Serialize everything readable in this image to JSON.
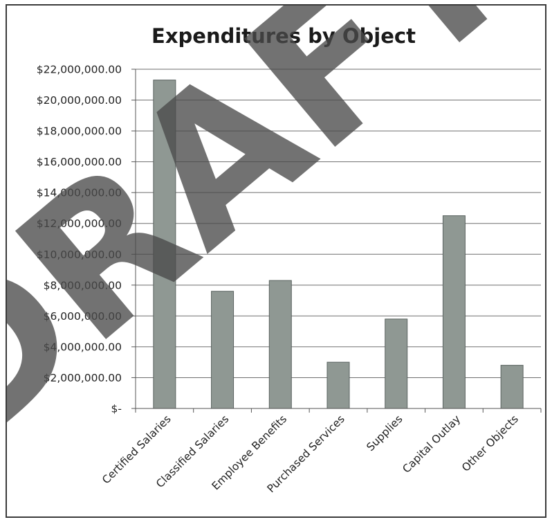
{
  "chart_data": {
    "type": "bar",
    "title": "Expenditures by Object",
    "categories": [
      "Certified Salaries",
      "Classified Salaries",
      "Employee Benefits",
      "Purchased Services",
      "Supplies",
      "Capital Outlay",
      "Other Objects"
    ],
    "values": [
      21300000,
      7600000,
      8300000,
      3000000,
      5800000,
      12500000,
      2800000
    ],
    "ylim": [
      0,
      22000000
    ],
    "ytick_values": [
      0,
      2000000,
      4000000,
      6000000,
      8000000,
      10000000,
      12000000,
      14000000,
      16000000,
      18000000,
      20000000,
      22000000
    ],
    "ytick_labels": [
      "$-",
      "$2,000,000.00",
      "$4,000,000.00",
      "$6,000,000.00",
      "$8,000,000.00",
      "$10,000,000.00",
      "$12,000,000.00",
      "$14,000,000.00",
      "$16,000,000.00",
      "$18,000,000.00",
      "$20,000,000.00",
      "$22,000,000.00"
    ],
    "xlabel": "",
    "ylabel": "",
    "grid": true,
    "legend": "none",
    "bar_color": "#8f9893"
  },
  "watermark": "DRAFT"
}
